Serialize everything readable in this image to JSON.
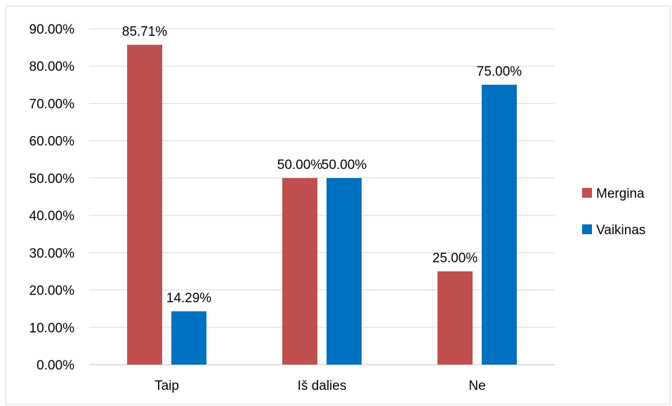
{
  "chart_data": {
    "type": "bar",
    "categories": [
      "Taip",
      "Iš dalies",
      "Ne"
    ],
    "series": [
      {
        "name": "Mergina",
        "values": [
          85.71,
          50.0,
          25.0
        ],
        "color": "#c0504d"
      },
      {
        "name": "Vaikinas",
        "values": [
          14.29,
          50.0,
          75.0
        ],
        "color": "#0070c0"
      }
    ],
    "value_labels": [
      [
        "85.71%",
        "50.00%",
        "25.00%"
      ],
      [
        "14.29%",
        "50.00%",
        "75.00%"
      ]
    ],
    "y_ticks": [
      "0.00%",
      "10.00%",
      "20.00%",
      "30.00%",
      "40.00%",
      "50.00%",
      "60.00%",
      "70.00%",
      "80.00%",
      "90.00%"
    ],
    "ylim": [
      0,
      90
    ],
    "grid": true,
    "legend_position": "right",
    "title": "",
    "xlabel": "",
    "ylabel": ""
  }
}
